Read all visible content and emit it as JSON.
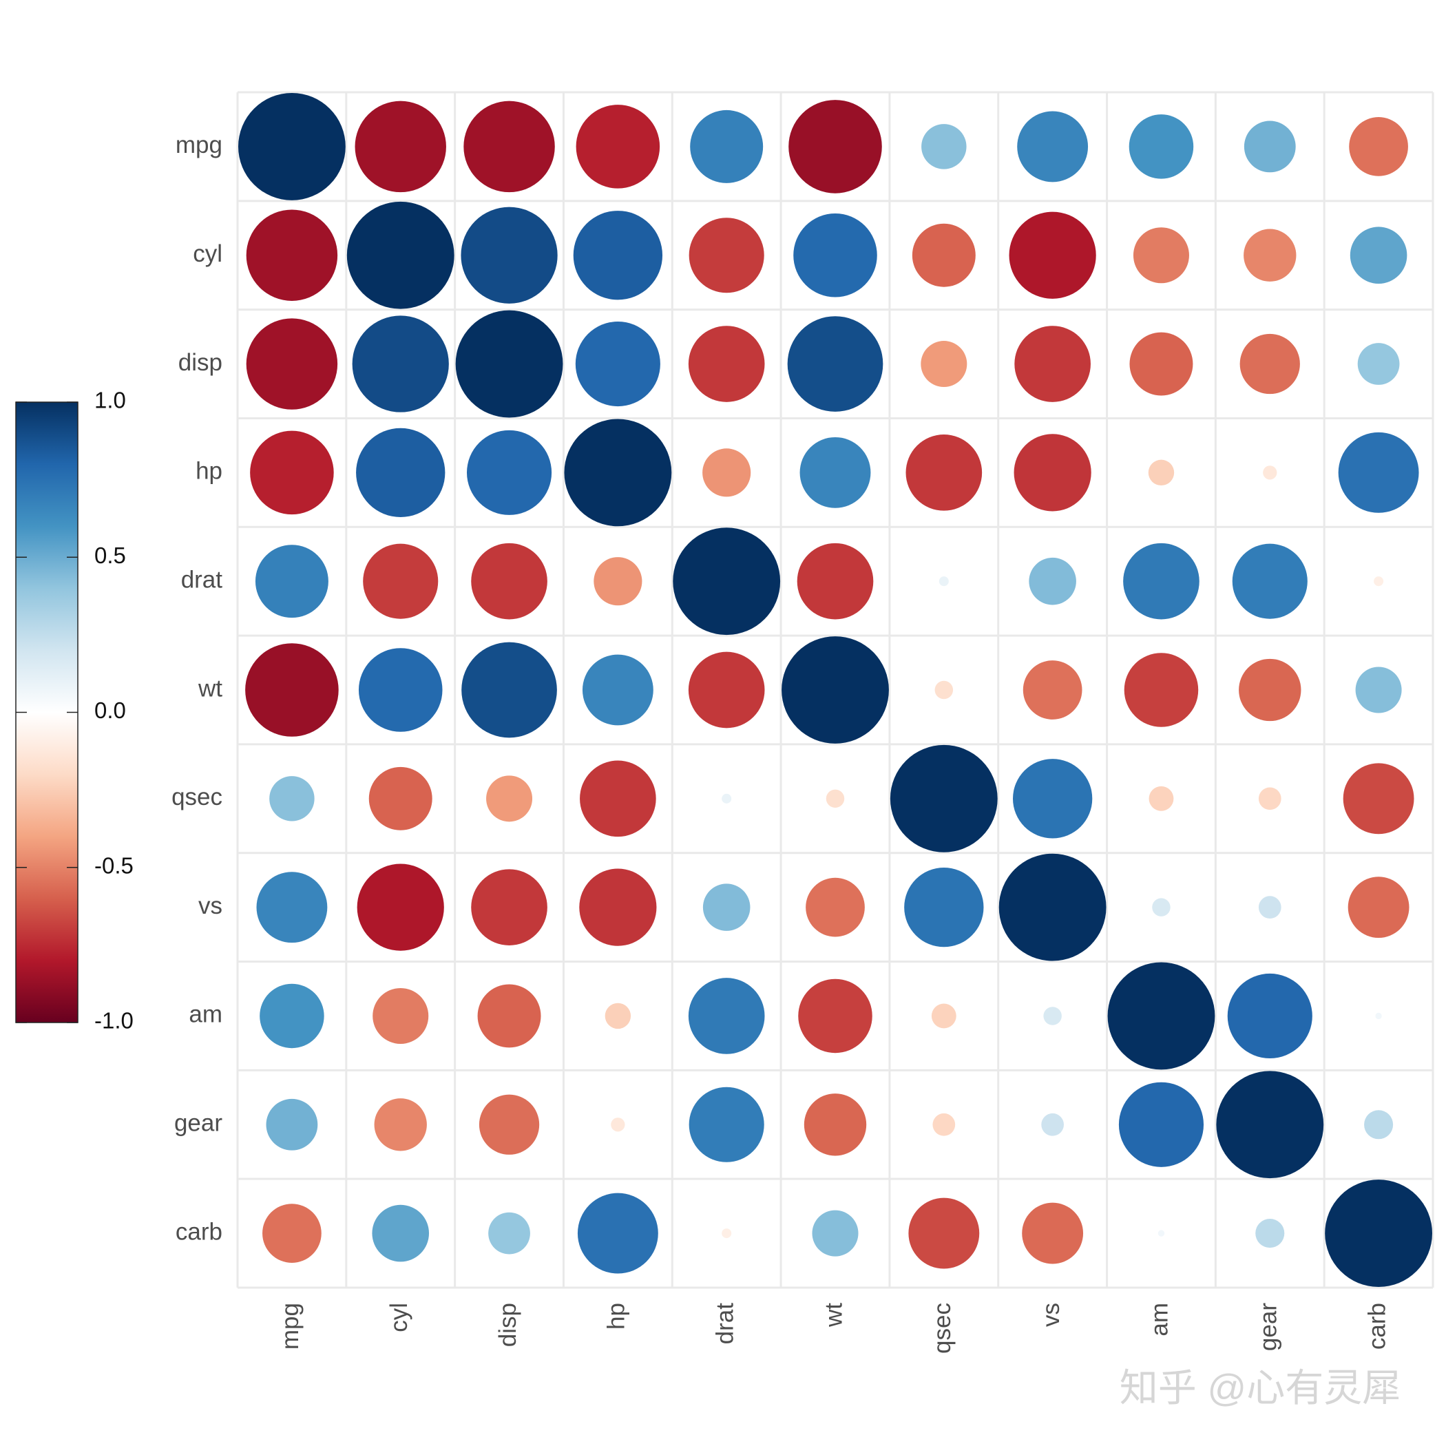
{
  "chart_data": {
    "type": "corrplot",
    "x": [
      "mpg",
      "cyl",
      "disp",
      "hp",
      "drat",
      "wt",
      "qsec",
      "vs",
      "am",
      "gear",
      "carb"
    ],
    "y": [
      "mpg",
      "cyl",
      "disp",
      "hp",
      "drat",
      "wt",
      "qsec",
      "vs",
      "am",
      "gear",
      "carb"
    ],
    "values": [
      [
        1,
        -0.85,
        -0.85,
        -0.78,
        0.68,
        -0.87,
        0.42,
        0.66,
        0.6,
        0.48,
        -0.55
      ],
      [
        -0.85,
        1,
        0.9,
        0.83,
        -0.7,
        0.78,
        -0.59,
        -0.81,
        -0.52,
        -0.49,
        0.53
      ],
      [
        -0.85,
        0.9,
        1,
        0.79,
        -0.71,
        0.89,
        -0.43,
        -0.71,
        -0.59,
        -0.56,
        0.39
      ],
      [
        -0.78,
        0.83,
        0.79,
        1,
        -0.45,
        0.66,
        -0.71,
        -0.72,
        -0.24,
        -0.13,
        0.75
      ],
      [
        0.68,
        -0.7,
        -0.71,
        -0.45,
        1,
        -0.71,
        0.09,
        0.44,
        0.71,
        0.7,
        -0.09
      ],
      [
        -0.87,
        0.78,
        0.89,
        0.66,
        -0.71,
        1,
        -0.17,
        -0.55,
        -0.69,
        -0.58,
        0.43
      ],
      [
        0.42,
        -0.59,
        -0.43,
        -0.71,
        0.09,
        -0.17,
        1,
        0.74,
        -0.23,
        -0.21,
        -0.66
      ],
      [
        0.66,
        -0.81,
        -0.71,
        -0.72,
        0.44,
        -0.55,
        0.74,
        1,
        0.17,
        0.21,
        -0.57
      ],
      [
        0.6,
        -0.52,
        -0.59,
        -0.24,
        0.71,
        -0.69,
        -0.23,
        0.17,
        1,
        0.79,
        0.06
      ],
      [
        0.48,
        -0.49,
        -0.56,
        -0.13,
        0.7,
        -0.58,
        -0.21,
        0.21,
        0.79,
        1,
        0.27
      ],
      [
        -0.55,
        0.53,
        0.39,
        0.75,
        -0.09,
        0.43,
        -0.66,
        -0.57,
        0.06,
        0.27,
        1
      ]
    ],
    "clim": [
      -1,
      1
    ],
    "colormap": [
      "#67001F",
      "#B2182B",
      "#D6604D",
      "#F4A582",
      "#FDDBC7",
      "#FFFFFF",
      "#D1E5F0",
      "#92C5DE",
      "#4393C3",
      "#2166AC",
      "#053061"
    ],
    "cticks": [
      {
        "value": 1,
        "label": "1.0"
      },
      {
        "value": 0.5,
        "label": "0.5"
      },
      {
        "value": 0,
        "label": "0.0"
      },
      {
        "value": -0.5,
        "label": "-0.5"
      },
      {
        "value": -1,
        "label": "-1.0"
      }
    ],
    "watermark": "知乎 @心有灵犀"
  }
}
